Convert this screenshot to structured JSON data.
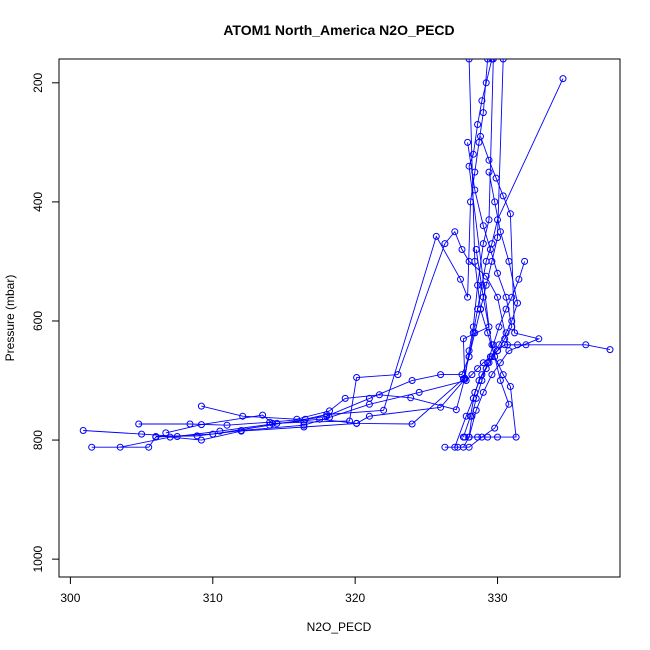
{
  "chart_data": {
    "type": "line",
    "title": "ATOM1 North_America N2O_PECD",
    "xlabel": "N2O_PECD",
    "ylabel": "Pressure (mbar)",
    "xlim": [
      299.2,
      338.6
    ],
    "ylim": [
      1030,
      160
    ],
    "y_axis_reversed": true,
    "grid": false,
    "x_ticks": [
      300,
      310,
      320,
      330
    ],
    "x_tick_labels": [
      "300",
      "310",
      "320",
      "330"
    ],
    "y_ticks": [
      200,
      400,
      600,
      800,
      1000
    ],
    "y_tick_labels": [
      "200",
      "400",
      "600",
      "800",
      "1000"
    ],
    "line_color": "#0000ff",
    "marker": "open-circle",
    "series": [
      {
        "x": [
          327.6,
          328.0,
          328.2,
          328.5,
          328.9,
          329.3,
          329.7,
          330.1,
          330.6,
          331.0,
          331.5,
          331.9
        ],
        "y": [
          812,
          795,
          760,
          730,
          700,
          670,
          640,
          610,
          580,
          560,
          530,
          500
        ]
      },
      {
        "x": [
          301.5,
          305.5,
          306.0,
          310.0,
          314.0,
          318.0,
          321.0,
          324.0,
          326.0,
          327.5,
          328.0,
          328.4,
          328.8,
          329.2,
          329.6,
          330.0,
          330.4
        ],
        "y": [
          812,
          812,
          795,
          790,
          775,
          760,
          730,
          700,
          690,
          690,
          660,
          620,
          580,
          540,
          500,
          460,
          160
        ]
      },
      {
        "x": [
          303.5,
          307.0,
          309.2,
          312.0,
          316.4,
          320.1,
          321.0,
          326.0,
          327.7,
          328.0,
          328.3,
          328.6,
          329.0,
          329.4,
          329.7
        ],
        "y": [
          812,
          795,
          800,
          785,
          778,
          772,
          760,
          745,
          698,
          650,
          610,
          540,
          470,
          430,
          160
        ]
      },
      {
        "x": [
          300.9,
          305.0,
          307.5,
          310.5,
          314.5,
          317.5,
          320.1,
          324.0,
          327.6,
          328.0,
          328.3,
          328.6,
          328.9,
          329.2,
          329.6,
          330.0,
          334.6
        ],
        "y": [
          784,
          790,
          794,
          785,
          772,
          765,
          772,
          773,
          697,
          660,
          620,
          580,
          540,
          500,
          470,
          430,
          193
        ]
      },
      {
        "x": [
          304.8,
          308.4,
          311.0,
          314.0,
          316.5,
          318.0,
          322.0,
          325.7,
          327.4,
          327.9,
          328.1,
          328.4,
          328.7,
          329.0,
          329.3
        ],
        "y": [
          773,
          773,
          775,
          770,
          765,
          757,
          750,
          458,
          530,
          560,
          400,
          350,
          300,
          250,
          160
        ]
      },
      {
        "x": [
          309.2,
          312.1,
          315.9,
          318.2,
          319.3,
          321.7,
          323.9,
          327.1,
          327.7,
          327.6,
          329.4,
          328.0,
          328.3,
          328.6,
          328.9,
          329.2,
          329.6
        ],
        "y": [
          743,
          760,
          765,
          751,
          730,
          724,
          729,
          749,
          696,
          630,
          610,
          340,
          320,
          270,
          230,
          200,
          160
        ]
      },
      {
        "x": [
          306.7,
          309.2,
          313.5,
          314.2,
          316.4,
          319.6,
          320.1,
          323.0,
          326.3,
          327.0,
          327.5,
          328.0,
          329.2,
          330.0,
          330.7,
          331.4,
          332.0
        ],
        "y": [
          788,
          774,
          758,
          772,
          770,
          768,
          695,
          690,
          470,
          450,
          480,
          500,
          525,
          560,
          640,
          640,
          640
        ]
      },
      {
        "x": [
          306.0,
          308.9,
          312.0,
          316.4,
          318.2,
          321.0,
          324.5,
          327.8,
          328.2,
          328.6,
          329.0,
          329.5,
          330.0,
          330.5,
          336.2,
          337.9
        ],
        "y": [
          794,
          793,
          784,
          775,
          762,
          740,
          720,
          700,
          690,
          680,
          670,
          660,
          650,
          640,
          640,
          648
        ]
      },
      {
        "x": [
          327.0,
          327.8,
          328.3,
          328.7,
          329.2,
          329.6,
          330.1,
          330.6,
          331.0,
          331.4,
          330.8,
          330.2,
          329.8,
          329.4
        ],
        "y": [
          812,
          760,
          730,
          700,
          680,
          660,
          640,
          620,
          600,
          570,
          500,
          450,
          400,
          350
        ]
      },
      {
        "x": [
          327.6,
          328.1,
          328.4,
          328.9,
          329.4,
          330.0,
          330.5,
          331.0,
          330.6,
          330.0,
          329.5,
          329.0,
          328.4,
          327.9
        ],
        "y": [
          795,
          760,
          720,
          690,
          670,
          650,
          630,
          610,
          560,
          520,
          480,
          440,
          380,
          300
        ]
      },
      {
        "x": [
          328.0,
          328.5,
          329.0,
          329.6,
          330.2,
          330.8,
          332.9,
          331.2,
          330.9,
          330.4,
          329.9,
          329.4,
          328.8
        ],
        "y": [
          795,
          750,
          720,
          690,
          670,
          650,
          630,
          620,
          420,
          390,
          360,
          330,
          290
        ]
      },
      {
        "x": [
          327.7,
          328.6,
          329.3,
          330.0,
          331.3,
          330.9,
          330.4,
          329.8,
          329.3,
          328.8,
          328.4,
          328.0
        ],
        "y": [
          795,
          795,
          795,
          795,
          795,
          710,
          690,
          660,
          620,
          580,
          500,
          160
        ]
      },
      {
        "x": [
          326.3,
          327.2,
          328.0,
          328.9,
          329.8,
          330.8,
          330.2,
          329.6,
          329.0,
          328.5
        ],
        "y": [
          812,
          812,
          812,
          795,
          780,
          740,
          700,
          640,
          560,
          480
        ]
      }
    ]
  }
}
